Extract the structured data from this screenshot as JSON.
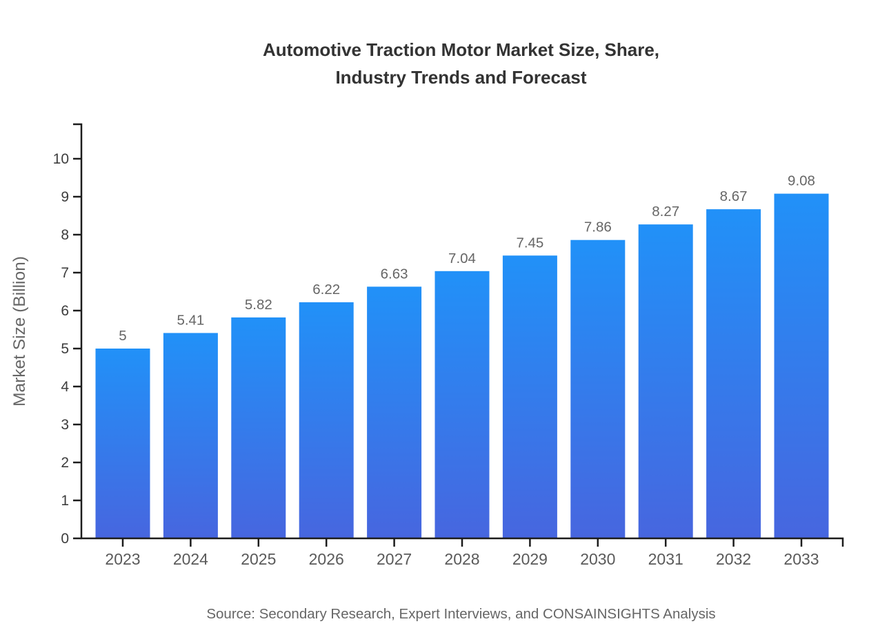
{
  "title": {
    "line1": "Automotive Traction Motor Market Size, Share,",
    "line2": "Industry Trends and Forecast"
  },
  "source": "Source: Secondary Research, Expert Interviews, and CONSAINSIGHTS Analysis",
  "colors": {
    "bar_gradient_top": "#2191f8",
    "bar_gradient_bottom": "#4766df",
    "axis": "#1c1c1c",
    "title_text": "#333333",
    "value_label_text": "#666666",
    "year_label_text": "#5a5a5a",
    "ytick_label_text": "#3d3d3d",
    "ylabel_text": "#666666",
    "source_text": "#666666"
  },
  "chart_data": {
    "type": "bar",
    "title": "Automotive Traction Motor Market Size, Share, Industry Trends and Forecast",
    "categories": [
      "2023",
      "2024",
      "2025",
      "2026",
      "2027",
      "2028",
      "2029",
      "2030",
      "2031",
      "2032",
      "2033"
    ],
    "values": [
      5,
      5.41,
      5.82,
      6.22,
      6.63,
      7.04,
      7.45,
      7.86,
      8.27,
      8.67,
      9.08
    ],
    "value_labels": [
      "5",
      "5.41",
      "5.82",
      "6.22",
      "6.63",
      "7.04",
      "7.45",
      "7.86",
      "8.27",
      "8.67",
      "9.08"
    ],
    "xlabel": "",
    "ylabel": "Market Size (Billion)",
    "ylim": [
      0,
      10
    ],
    "yticks": [
      0,
      1,
      2,
      3,
      4,
      5,
      6,
      7,
      8,
      9,
      10
    ],
    "grid": false,
    "legend_position": "none",
    "source": "Source: Secondary Research, Expert Interviews, and CONSAINSIGHTS Analysis"
  }
}
